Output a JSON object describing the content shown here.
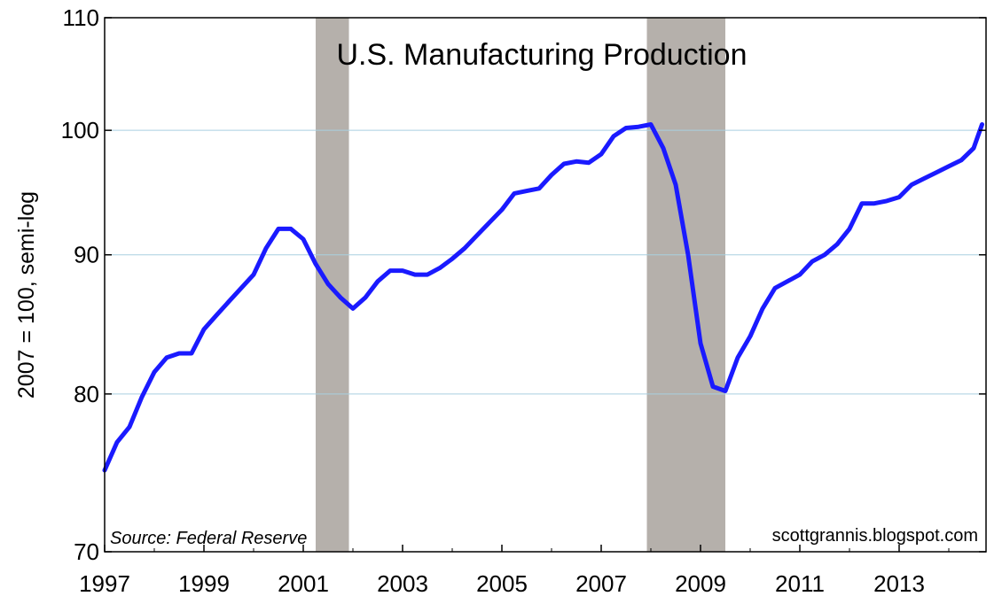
{
  "chart_data": {
    "type": "line",
    "title": "U.S. Manufacturing Production",
    "ylabel": "2007 = 100, semi-log",
    "xlabel": "",
    "y_scale": "log",
    "ylim": [
      70,
      110
    ],
    "xlim": [
      1997.0,
      2014.75
    ],
    "y_ticks": [
      70,
      80,
      90,
      100,
      110
    ],
    "x_ticks": [
      "1997",
      "1999",
      "2001",
      "2003",
      "2005",
      "2007",
      "2009",
      "2011",
      "2013"
    ],
    "grid": "horizontal",
    "source_note": "Source: Federal Reserve",
    "credit": "scottgrannis.blogspot.com",
    "recessions": [
      {
        "start": 2001.25,
        "end": 2001.92
      },
      {
        "start": 2007.92,
        "end": 2009.5
      }
    ],
    "colors": {
      "line": "#1a1aff",
      "recession_shade": "#b5b0ab",
      "grid": "#a9cfe0"
    },
    "series": [
      {
        "x": [
          1997.0,
          1997.25,
          1997.5,
          1997.75,
          1998.0,
          1998.25,
          1998.5,
          1998.75,
          1999.0,
          1999.25,
          1999.5,
          1999.75,
          2000.0,
          2000.25,
          2000.5,
          2000.75,
          2001.0,
          2001.25,
          2001.5,
          2001.75,
          2002.0,
          2002.25,
          2002.5,
          2002.75,
          2003.0,
          2003.25,
          2003.5,
          2003.75,
          2004.0,
          2004.25,
          2004.5,
          2004.75,
          2005.0,
          2005.25,
          2005.5,
          2005.75,
          2006.0,
          2006.25,
          2006.5,
          2006.75,
          2007.0,
          2007.25,
          2007.5,
          2007.75,
          2008.0,
          2008.25,
          2008.5,
          2008.75,
          2009.0,
          2009.25,
          2009.5,
          2009.75,
          2010.0,
          2010.25,
          2010.5,
          2010.75,
          2011.0,
          2011.25,
          2011.5,
          2011.75,
          2012.0,
          2012.25,
          2012.5,
          2012.75,
          2013.0,
          2013.25,
          2013.5,
          2013.75,
          2014.0,
          2014.25,
          2014.5,
          2014.67
        ],
        "values": [
          75.0,
          76.8,
          77.8,
          79.8,
          81.5,
          82.5,
          82.8,
          82.8,
          84.5,
          85.5,
          86.5,
          87.5,
          88.5,
          90.5,
          92.0,
          92.0,
          91.2,
          89.3,
          87.8,
          86.8,
          86.0,
          86.8,
          88.0,
          88.8,
          88.8,
          88.5,
          88.5,
          89.0,
          89.7,
          90.5,
          91.5,
          92.5,
          93.5,
          94.8,
          95.0,
          95.2,
          96.3,
          97.2,
          97.4,
          97.3,
          98.0,
          99.5,
          100.2,
          100.3,
          100.5,
          98.5,
          95.5,
          90.0,
          83.5,
          80.5,
          80.2,
          82.5,
          84.0,
          86.0,
          87.5,
          88.0,
          88.5,
          89.5,
          90.0,
          90.8,
          92.0,
          94.0,
          94.0,
          94.2,
          94.5,
          95.5,
          96.0,
          96.5,
          97.0,
          97.5,
          98.5,
          100.5
        ]
      }
    ]
  }
}
